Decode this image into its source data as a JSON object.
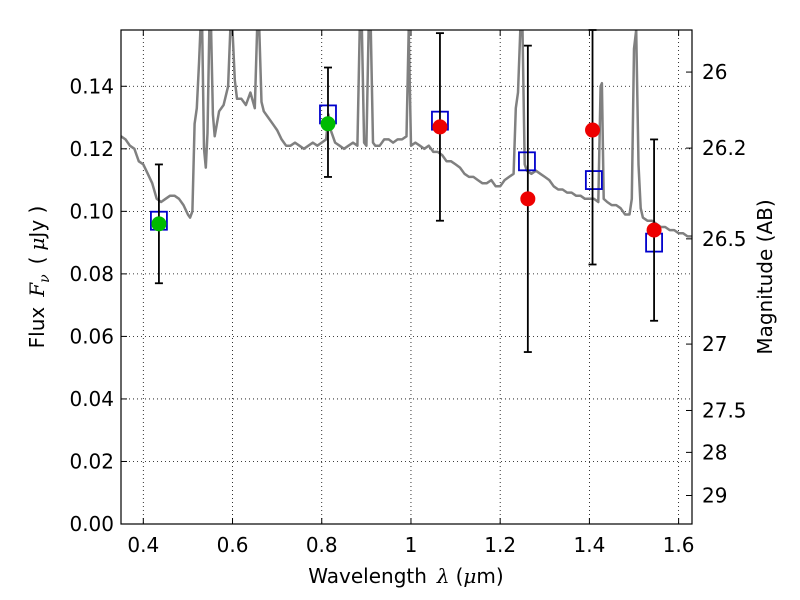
{
  "chart_data": {
    "type": "scatter",
    "xlabel": {
      "prefix": "Wavelength",
      "symbol": "λ",
      "unit_open": "(",
      "unit_mu": "μ",
      "unit_rest": "m)"
    },
    "ylabel": {
      "prefix": "Flux",
      "symbol": "F",
      "subscript": "ν",
      "unit_open": "(",
      "unit_mu": "μ",
      "unit_rest": "Jy )"
    },
    "y2label": "Magnitude (AB)",
    "xlim": [
      0.35,
      1.63
    ],
    "ylim": [
      0.0,
      0.158
    ],
    "grid": true,
    "x_ticks": [
      {
        "v": 0.4,
        "label": "0.4"
      },
      {
        "v": 0.6,
        "label": "0.6"
      },
      {
        "v": 0.8,
        "label": "0.8"
      },
      {
        "v": 1.0,
        "label": "1"
      },
      {
        "v": 1.2,
        "label": "1.2"
      },
      {
        "v": 1.4,
        "label": "1.4"
      },
      {
        "v": 1.6,
        "label": "1.6"
      }
    ],
    "y_ticks": [
      {
        "v": 0.0,
        "label": "0.00"
      },
      {
        "v": 0.02,
        "label": "0.02"
      },
      {
        "v": 0.04,
        "label": "0.04"
      },
      {
        "v": 0.06,
        "label": "0.06"
      },
      {
        "v": 0.08,
        "label": "0.08"
      },
      {
        "v": 0.1,
        "label": "0.10"
      },
      {
        "v": 0.12,
        "label": "0.12"
      },
      {
        "v": 0.14,
        "label": "0.14"
      }
    ],
    "y2_ticks": [
      {
        "mag": 26,
        "label": "26"
      },
      {
        "mag": 26.2,
        "label": "26.2"
      },
      {
        "mag": 26.5,
        "label": "26.5"
      },
      {
        "mag": 27,
        "label": "27"
      },
      {
        "mag": 27.5,
        "label": "27.5"
      },
      {
        "mag": 28,
        "label": "28"
      },
      {
        "mag": 29,
        "label": "29"
      }
    ],
    "series": [
      {
        "kind": "spectrum",
        "color": "#808080",
        "points": [
          [
            0.35,
            0.124
          ],
          [
            0.36,
            0.123
          ],
          [
            0.37,
            0.121
          ],
          [
            0.38,
            0.12
          ],
          [
            0.385,
            0.118
          ],
          [
            0.39,
            0.116
          ],
          [
            0.4,
            0.115
          ],
          [
            0.41,
            0.112
          ],
          [
            0.42,
            0.109
          ],
          [
            0.43,
            0.104
          ],
          [
            0.44,
            0.103
          ],
          [
            0.45,
            0.104
          ],
          [
            0.46,
            0.105
          ],
          [
            0.47,
            0.105
          ],
          [
            0.48,
            0.104
          ],
          [
            0.49,
            0.102
          ],
          [
            0.5,
            0.099
          ],
          [
            0.505,
            0.098
          ],
          [
            0.51,
            0.1
          ],
          [
            0.515,
            0.128
          ],
          [
            0.52,
            0.133
          ],
          [
            0.525,
            0.148
          ],
          [
            0.528,
            0.158
          ],
          [
            0.532,
            0.158
          ],
          [
            0.536,
            0.12
          ],
          [
            0.54,
            0.114
          ],
          [
            0.544,
            0.125
          ],
          [
            0.548,
            0.158
          ],
          [
            0.552,
            0.158
          ],
          [
            0.556,
            0.131
          ],
          [
            0.56,
            0.124
          ],
          [
            0.57,
            0.132
          ],
          [
            0.58,
            0.134
          ],
          [
            0.59,
            0.14
          ],
          [
            0.595,
            0.158
          ],
          [
            0.6,
            0.158
          ],
          [
            0.605,
            0.142
          ],
          [
            0.61,
            0.136
          ],
          [
            0.62,
            0.136
          ],
          [
            0.63,
            0.134
          ],
          [
            0.64,
            0.138
          ],
          [
            0.65,
            0.133
          ],
          [
            0.655,
            0.158
          ],
          [
            0.66,
            0.158
          ],
          [
            0.665,
            0.135
          ],
          [
            0.67,
            0.132
          ],
          [
            0.68,
            0.13
          ],
          [
            0.69,
            0.128
          ],
          [
            0.7,
            0.126
          ],
          [
            0.71,
            0.123
          ],
          [
            0.72,
            0.121
          ],
          [
            0.73,
            0.121
          ],
          [
            0.74,
            0.122
          ],
          [
            0.75,
            0.121
          ],
          [
            0.76,
            0.12
          ],
          [
            0.77,
            0.121
          ],
          [
            0.78,
            0.122
          ],
          [
            0.79,
            0.121
          ],
          [
            0.8,
            0.122
          ],
          [
            0.81,
            0.123
          ],
          [
            0.815,
            0.131
          ],
          [
            0.82,
            0.126
          ],
          [
            0.83,
            0.122
          ],
          [
            0.84,
            0.121
          ],
          [
            0.85,
            0.12
          ],
          [
            0.86,
            0.121
          ],
          [
            0.87,
            0.122
          ],
          [
            0.88,
            0.121
          ],
          [
            0.885,
            0.158
          ],
          [
            0.89,
            0.158
          ],
          [
            0.895,
            0.122
          ],
          [
            0.9,
            0.121
          ],
          [
            0.905,
            0.158
          ],
          [
            0.91,
            0.158
          ],
          [
            0.915,
            0.122
          ],
          [
            0.92,
            0.121
          ],
          [
            0.93,
            0.121
          ],
          [
            0.94,
            0.123
          ],
          [
            0.95,
            0.123
          ],
          [
            0.96,
            0.122
          ],
          [
            0.97,
            0.123
          ],
          [
            0.98,
            0.123
          ],
          [
            0.99,
            0.124
          ],
          [
            0.995,
            0.158
          ],
          [
            1.0,
            0.121
          ],
          [
            1.01,
            0.122
          ],
          [
            1.02,
            0.121
          ],
          [
            1.03,
            0.12
          ],
          [
            1.04,
            0.121
          ],
          [
            1.05,
            0.119
          ],
          [
            1.06,
            0.119
          ],
          [
            1.07,
            0.118
          ],
          [
            1.08,
            0.116
          ],
          [
            1.09,
            0.116
          ],
          [
            1.1,
            0.115
          ],
          [
            1.11,
            0.114
          ],
          [
            1.12,
            0.112
          ],
          [
            1.13,
            0.111
          ],
          [
            1.14,
            0.111
          ],
          [
            1.15,
            0.11
          ],
          [
            1.16,
            0.109
          ],
          [
            1.17,
            0.109
          ],
          [
            1.18,
            0.11
          ],
          [
            1.19,
            0.108
          ],
          [
            1.2,
            0.108
          ],
          [
            1.21,
            0.11
          ],
          [
            1.22,
            0.111
          ],
          [
            1.23,
            0.112
          ],
          [
            1.235,
            0.133
          ],
          [
            1.24,
            0.138
          ],
          [
            1.245,
            0.158
          ],
          [
            1.25,
            0.158
          ],
          [
            1.255,
            0.115
          ],
          [
            1.26,
            0.113
          ],
          [
            1.27,
            0.112
          ],
          [
            1.28,
            0.113
          ],
          [
            1.29,
            0.112
          ],
          [
            1.3,
            0.111
          ],
          [
            1.31,
            0.11
          ],
          [
            1.32,
            0.108
          ],
          [
            1.33,
            0.107
          ],
          [
            1.34,
            0.107
          ],
          [
            1.35,
            0.106
          ],
          [
            1.36,
            0.106
          ],
          [
            1.37,
            0.105
          ],
          [
            1.38,
            0.105
          ],
          [
            1.39,
            0.104
          ],
          [
            1.4,
            0.104
          ],
          [
            1.41,
            0.104
          ],
          [
            1.42,
            0.103
          ],
          [
            1.425,
            0.14
          ],
          [
            1.428,
            0.141
          ],
          [
            1.432,
            0.104
          ],
          [
            1.44,
            0.103
          ],
          [
            1.45,
            0.102
          ],
          [
            1.46,
            0.102
          ],
          [
            1.47,
            0.101
          ],
          [
            1.48,
            0.099
          ],
          [
            1.49,
            0.099
          ],
          [
            1.495,
            0.104
          ],
          [
            1.5,
            0.152
          ],
          [
            1.505,
            0.158
          ],
          [
            1.51,
            0.115
          ],
          [
            1.515,
            0.101
          ],
          [
            1.52,
            0.098
          ],
          [
            1.53,
            0.097
          ],
          [
            1.54,
            0.097
          ],
          [
            1.55,
            0.096
          ],
          [
            1.56,
            0.095
          ],
          [
            1.57,
            0.095
          ],
          [
            1.58,
            0.094
          ],
          [
            1.59,
            0.094
          ],
          [
            1.6,
            0.093
          ],
          [
            1.61,
            0.093
          ],
          [
            1.62,
            0.092
          ],
          [
            1.63,
            0.092
          ]
        ]
      },
      {
        "kind": "model-squares",
        "color": "#0000cc",
        "points": [
          [
            0.435,
            0.097
          ],
          [
            0.814,
            0.131
          ],
          [
            1.065,
            0.129
          ],
          [
            1.26,
            0.116
          ],
          [
            1.41,
            0.11
          ],
          [
            1.545,
            0.09
          ]
        ]
      },
      {
        "kind": "errorbars",
        "color": "#000000",
        "points": [
          {
            "x": 0.435,
            "y": 0.096,
            "lo": 0.077,
            "hi": 0.115
          },
          {
            "x": 0.814,
            "y": 0.128,
            "lo": 0.111,
            "hi": 0.146
          },
          {
            "x": 1.065,
            "y": 0.127,
            "lo": 0.097,
            "hi": 0.157
          },
          {
            "x": 1.262,
            "y": 0.104,
            "lo": 0.055,
            "hi": 0.153
          },
          {
            "x": 1.407,
            "y": 0.126,
            "lo": 0.083,
            "hi": 0.158
          },
          {
            "x": 1.545,
            "y": 0.094,
            "lo": 0.065,
            "hi": 0.123
          }
        ]
      },
      {
        "kind": "detections-green",
        "color": "#00bb00",
        "points": [
          [
            0.435,
            0.096
          ],
          [
            0.814,
            0.128
          ]
        ]
      },
      {
        "kind": "detections-red",
        "color": "#ee0000",
        "points": [
          [
            1.065,
            0.127
          ],
          [
            1.262,
            0.104
          ],
          [
            1.407,
            0.126
          ],
          [
            1.545,
            0.094
          ]
        ]
      }
    ]
  }
}
